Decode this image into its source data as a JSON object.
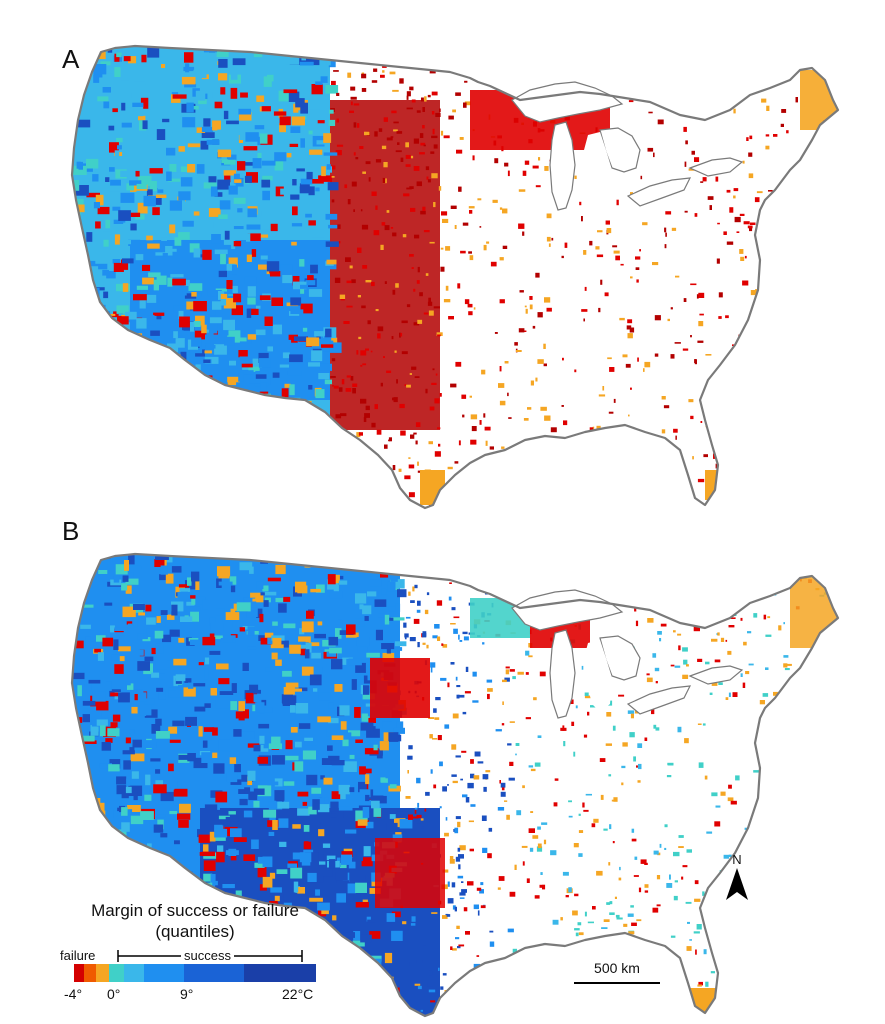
{
  "panels": [
    {
      "label": "A"
    },
    {
      "label": "B"
    }
  ],
  "legend": {
    "title_line1": "Margin of success or failure",
    "title_line2": "(quantiles)",
    "failure_label": "failure",
    "success_label": "success",
    "ticks": [
      "-4°",
      "0°",
      "9°",
      "22°C"
    ],
    "colors": [
      "#d40000",
      "#f05a00",
      "#f5a623",
      "#40d0c8",
      "#3ab7ea",
      "#1f8ff0",
      "#1a63d6",
      "#1a3fa8"
    ]
  },
  "scale_bar": {
    "label": "500 km"
  },
  "north_arrow": {
    "label": "N"
  },
  "map_colors": {
    "outline": "#7a7a7a",
    "lakes": "#ffffff",
    "dark_red": "#b30000",
    "red": "#e00000",
    "orange": "#f5a623",
    "teal": "#40d0c8",
    "light_blue": "#3ab7ea",
    "blue": "#1f8ff0",
    "navy": "#1a4fc0"
  }
}
